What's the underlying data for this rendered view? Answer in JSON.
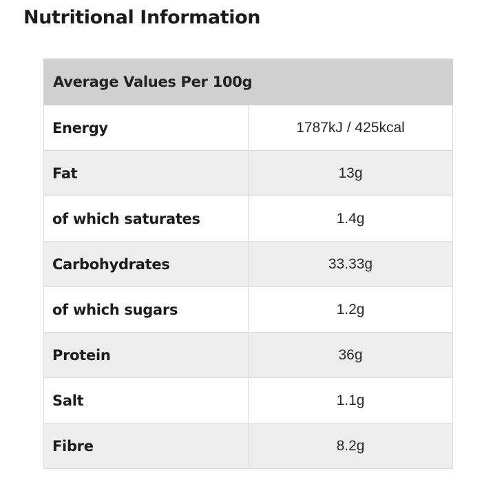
{
  "title": "Nutritional Information",
  "table": {
    "header": "Average Values Per 100g",
    "rows": [
      {
        "name": "Energy",
        "value": "1787kJ / 425kcal"
      },
      {
        "name": "Fat",
        "value": "13g"
      },
      {
        "name": "of which saturates",
        "value": "1.4g"
      },
      {
        "name": "Carbohydrates",
        "value": "33.33g"
      },
      {
        "name": "of which sugars",
        "value": "1.2g"
      },
      {
        "name": "Protein",
        "value": "36g"
      },
      {
        "name": "Salt",
        "value": "1.1g"
      },
      {
        "name": "Fibre",
        "value": "8.2g"
      }
    ]
  },
  "colors": {
    "header_background": "#d0d0d0",
    "row_alternate_background": "#ededed",
    "row_background": "#ffffff",
    "border": "#dedede"
  }
}
